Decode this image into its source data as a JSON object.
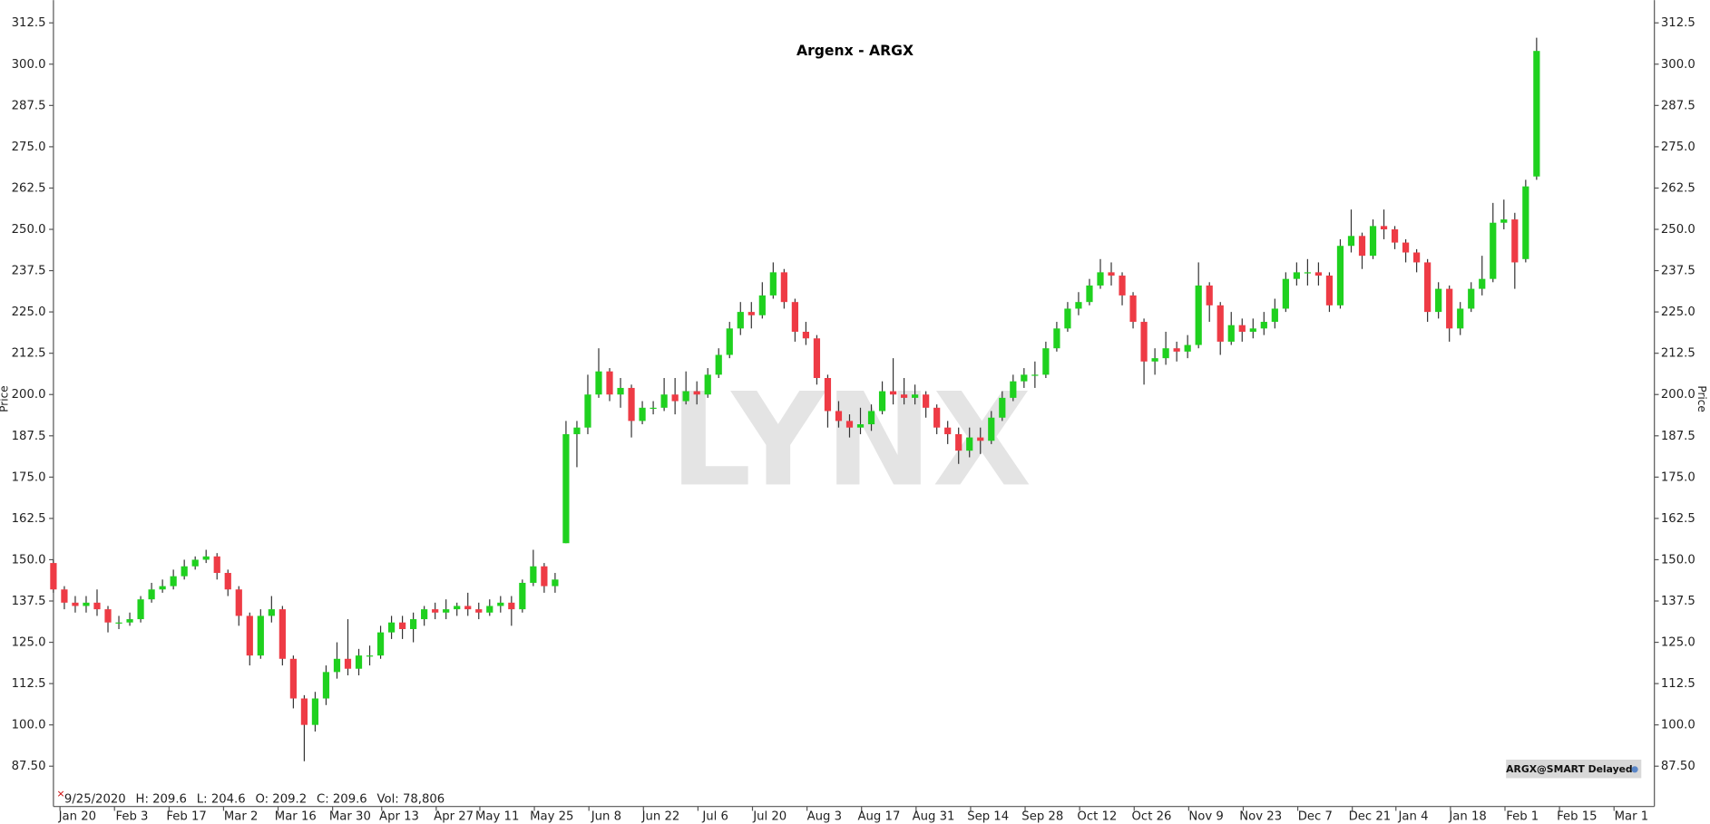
{
  "chart_data": {
    "type": "candlestick",
    "title": "Argenx - ARGX",
    "ylabel": "Price",
    "up_color": "#1fd11f",
    "down_color": "#ee3b45",
    "watermark": "LYNX",
    "badge": "ARGX@SMART Delayed",
    "status_line": [
      "9/25/2020",
      "H: 209.6",
      "L: 204.6",
      "O: 209.2",
      "C: 209.6",
      "Vol: 78,806"
    ],
    "xlim": [
      0,
      146.8
    ],
    "ylim": [
      75.3,
      319.4
    ],
    "xticks": [
      {
        "value": 2.2,
        "label": "Jan 20"
      },
      {
        "value": 7.2,
        "label": "Feb 3"
      },
      {
        "value": 12.2,
        "label": "Feb 17"
      },
      {
        "value": 17.2,
        "label": "Mar 2"
      },
      {
        "value": 22.2,
        "label": "Mar 16"
      },
      {
        "value": 27.2,
        "label": "Mar 30"
      },
      {
        "value": 31.7,
        "label": "Apr 13"
      },
      {
        "value": 36.7,
        "label": "Apr 27"
      },
      {
        "value": 40.7,
        "label": "May 11"
      },
      {
        "value": 45.7,
        "label": "May 25"
      },
      {
        "value": 50.7,
        "label": "Jun 8"
      },
      {
        "value": 55.7,
        "label": "Jun 22"
      },
      {
        "value": 60.7,
        "label": "Jul 6"
      },
      {
        "value": 65.7,
        "label": "Jul 20"
      },
      {
        "value": 70.7,
        "label": "Aug 3"
      },
      {
        "value": 75.7,
        "label": "Aug 17"
      },
      {
        "value": 80.7,
        "label": "Aug 31"
      },
      {
        "value": 85.7,
        "label": "Sep 14"
      },
      {
        "value": 90.7,
        "label": "Sep 28"
      },
      {
        "value": 95.7,
        "label": "Oct 12"
      },
      {
        "value": 100.7,
        "label": "Oct 26"
      },
      {
        "value": 105.7,
        "label": "Nov 9"
      },
      {
        "value": 110.7,
        "label": "Nov 23"
      },
      {
        "value": 115.7,
        "label": "Dec 7"
      },
      {
        "value": 120.7,
        "label": "Dec 21"
      },
      {
        "value": 124.7,
        "label": "Jan 4"
      },
      {
        "value": 129.7,
        "label": "Jan 18"
      },
      {
        "value": 134.7,
        "label": "Feb 1"
      },
      {
        "value": 139.7,
        "label": "Feb 15"
      },
      {
        "value": 144.7,
        "label": "Mar 1"
      }
    ],
    "yticks": [
      {
        "value": 87.5,
        "label": "87.50"
      },
      {
        "value": 100,
        "label": "100.0"
      },
      {
        "value": 112.5,
        "label": "112.5"
      },
      {
        "value": 125,
        "label": "125.0"
      },
      {
        "value": 137.5,
        "label": "137.5"
      },
      {
        "value": 150,
        "label": "150.0"
      },
      {
        "value": 162.5,
        "label": "162.5"
      },
      {
        "value": 175,
        "label": "175.0"
      },
      {
        "value": 187.5,
        "label": "187.5"
      },
      {
        "value": 200,
        "label": "200.0"
      },
      {
        "value": 212.5,
        "label": "212.5"
      },
      {
        "value": 225,
        "label": "225.0"
      },
      {
        "value": 237.5,
        "label": "237.5"
      },
      {
        "value": 250,
        "label": "250.0"
      },
      {
        "value": 262.5,
        "label": "262.5"
      },
      {
        "value": 275,
        "label": "275.0"
      },
      {
        "value": 287.5,
        "label": "287.5"
      },
      {
        "value": 300,
        "label": "300.0"
      },
      {
        "value": 312.5,
        "label": "312.5"
      }
    ],
    "x": [
      0,
      1,
      2,
      3,
      4,
      5,
      6,
      7,
      8,
      9,
      10,
      11,
      12,
      13,
      14,
      15,
      16,
      17,
      18,
      19,
      20,
      21,
      22,
      23,
      24,
      25,
      26,
      27,
      28,
      29,
      30,
      31,
      32,
      33,
      34,
      35,
      36,
      37,
      38,
      39,
      40,
      41,
      42,
      43,
      44,
      45,
      46,
      47,
      48,
      49,
      50,
      51,
      52,
      53,
      54,
      55,
      56,
      57,
      58,
      59,
      60,
      61,
      62,
      63,
      64,
      65,
      66,
      67,
      68,
      69,
      70,
      71,
      72,
      73,
      74,
      75,
      76,
      77,
      78,
      79,
      80,
      81,
      82,
      83,
      84,
      85,
      86,
      87,
      88,
      89,
      90,
      91,
      92,
      93,
      94,
      95,
      96,
      97,
      98,
      99,
      100,
      101,
      102,
      103,
      104,
      105,
      106,
      107,
      108,
      109,
      110,
      111,
      112,
      113,
      114,
      115,
      116,
      117,
      118,
      119,
      120,
      121,
      122,
      123,
      124,
      125,
      126,
      127,
      128,
      129,
      130,
      131,
      132,
      133,
      134,
      135,
      136
    ],
    "open": [
      149,
      141,
      137,
      136,
      137,
      135,
      131,
      131,
      132,
      138,
      141,
      142,
      145,
      148,
      150,
      151,
      146,
      141,
      133,
      121,
      133,
      135,
      120,
      108,
      100,
      108,
      116,
      120,
      117,
      121,
      121,
      128,
      131,
      129,
      132,
      135,
      134,
      135,
      136,
      135,
      134,
      136,
      137,
      135,
      143,
      148,
      142,
      155,
      188,
      190,
      200,
      207,
      200,
      202,
      192,
      196,
      196,
      200,
      198,
      201,
      200,
      206,
      212,
      220,
      225,
      224,
      230,
      237,
      228,
      219,
      217,
      205,
      195,
      192,
      190,
      191,
      195,
      201,
      200,
      199,
      200,
      196,
      190,
      188,
      183,
      187,
      186,
      193,
      199,
      204,
      206,
      206,
      214,
      220,
      226,
      228,
      233,
      237,
      236,
      230,
      222,
      210,
      211,
      214,
      213,
      215,
      233,
      227,
      216,
      221,
      219,
      220,
      222,
      226,
      235,
      237,
      237,
      236,
      227,
      245,
      248,
      242,
      251,
      250,
      246,
      243,
      240,
      225,
      232,
      220,
      226,
      232,
      235,
      252,
      253,
      241,
      266
    ],
    "high": [
      150,
      142,
      139,
      139,
      141,
      136,
      133,
      134,
      139,
      143,
      144,
      147,
      150,
      151,
      153,
      152,
      147,
      142,
      134,
      135,
      139,
      136,
      121,
      109,
      110,
      118,
      125,
      132,
      123,
      124,
      130,
      133,
      133,
      134,
      136,
      137,
      138,
      137,
      140,
      137,
      138,
      139,
      139,
      144,
      153,
      149,
      146,
      192,
      192,
      206,
      214,
      208,
      205,
      203,
      198,
      198,
      205,
      205,
      207,
      204,
      208,
      214,
      222,
      228,
      228,
      234,
      240,
      238,
      229,
      222,
      218,
      206,
      198,
      194,
      196,
      197,
      204,
      211,
      205,
      203,
      201,
      197,
      192,
      190,
      190,
      190,
      195,
      201,
      206,
      208,
      210,
      216,
      222,
      228,
      231,
      235,
      241,
      240,
      237,
      231,
      223,
      214,
      219,
      216,
      218,
      240,
      234,
      228,
      225,
      223,
      223,
      225,
      229,
      237,
      240,
      241,
      240,
      237,
      247,
      256,
      249,
      253,
      256,
      251,
      247,
      244,
      241,
      234,
      233,
      228,
      234,
      242,
      258,
      259,
      255,
      265,
      308
    ],
    "low": [
      140,
      135,
      134,
      134,
      133,
      128,
      129,
      130,
      131,
      137,
      140,
      141,
      144,
      147,
      149,
      144,
      139,
      130,
      118,
      120,
      131,
      118,
      105,
      89,
      98,
      106,
      114,
      115,
      115,
      118,
      120,
      126,
      126,
      125,
      130,
      132,
      132,
      133,
      133,
      132,
      133,
      134,
      130,
      134,
      142,
      140,
      140,
      155,
      178,
      188,
      199,
      198,
      196,
      187,
      191,
      194,
      195,
      194,
      197,
      197,
      199,
      205,
      211,
      218,
      220,
      223,
      229,
      226,
      216,
      215,
      203,
      190,
      190,
      187,
      188,
      189,
      194,
      197,
      197,
      197,
      193,
      188,
      185,
      179,
      181,
      182,
      185,
      192,
      198,
      202,
      202,
      205,
      213,
      219,
      224,
      227,
      232,
      233,
      227,
      220,
      203,
      206,
      209,
      210,
      211,
      214,
      222,
      212,
      215,
      216,
      217,
      218,
      220,
      225,
      233,
      233,
      233,
      225,
      226,
      243,
      238,
      241,
      247,
      244,
      240,
      237,
      222,
      223,
      216,
      218,
      225,
      230,
      234,
      250,
      232,
      240,
      265
    ],
    "close": [
      141,
      137,
      136,
      137,
      135,
      131,
      131,
      132,
      138,
      141,
      142,
      145,
      148,
      150,
      151,
      146,
      141,
      133,
      121,
      133,
      135,
      120,
      108,
      100,
      108,
      116,
      120,
      117,
      121,
      121,
      128,
      131,
      129,
      132,
      135,
      134,
      135,
      136,
      135,
      134,
      136,
      137,
      135,
      143,
      148,
      142,
      144,
      188,
      190,
      200,
      207,
      200,
      202,
      192,
      196,
      196,
      200,
      198,
      201,
      200,
      206,
      212,
      220,
      225,
      224,
      230,
      237,
      228,
      219,
      217,
      205,
      195,
      192,
      190,
      191,
      195,
      201,
      200,
      199,
      200,
      196,
      190,
      188,
      183,
      187,
      186,
      193,
      199,
      204,
      206,
      206,
      214,
      220,
      226,
      228,
      233,
      237,
      236,
      230,
      222,
      210,
      211,
      214,
      213,
      215,
      233,
      227,
      216,
      221,
      219,
      220,
      222,
      226,
      235,
      237,
      237,
      236,
      227,
      245,
      248,
      242,
      251,
      250,
      246,
      243,
      240,
      225,
      232,
      220,
      226,
      232,
      235,
      252,
      253,
      240,
      263,
      304
    ]
  }
}
